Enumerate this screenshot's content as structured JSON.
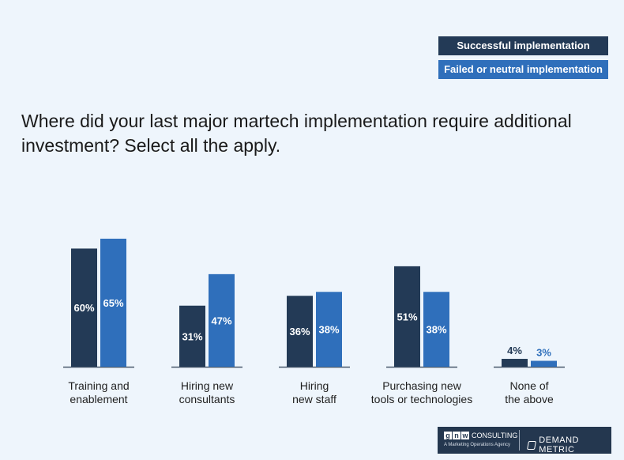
{
  "legend": {
    "items": [
      {
        "label": "Successful implementation",
        "color": "#233a56"
      },
      {
        "label": "Failed or neutral implementation",
        "color": "#2f6fbb"
      }
    ]
  },
  "question": "Where did your last major martech implementation require additional investment? Select all the apply.",
  "chart_data": {
    "type": "bar",
    "categories": [
      [
        "Training and",
        "enablement"
      ],
      [
        "Hiring new",
        "consultants"
      ],
      [
        "Hiring",
        "new staff"
      ],
      [
        "Purchasing new",
        "tools or technologies"
      ],
      [
        "None of",
        "the above"
      ]
    ],
    "series": [
      {
        "name": "Successful implementation",
        "color": "#233a56",
        "values": [
          60,
          31,
          36,
          51,
          4
        ]
      },
      {
        "name": "Failed or neutral implementation",
        "color": "#2f6fbb",
        "values": [
          65,
          47,
          38,
          38,
          3
        ]
      }
    ],
    "value_suffix": "%",
    "ylim": [
      0,
      65
    ]
  },
  "branding": {
    "gnw_letters": [
      "g",
      "n",
      "w"
    ],
    "gnw_word": "CONSULTING",
    "gnw_tagline": "A Marketing Operations Agency",
    "demand_metric": "DEMAND METRIC"
  }
}
